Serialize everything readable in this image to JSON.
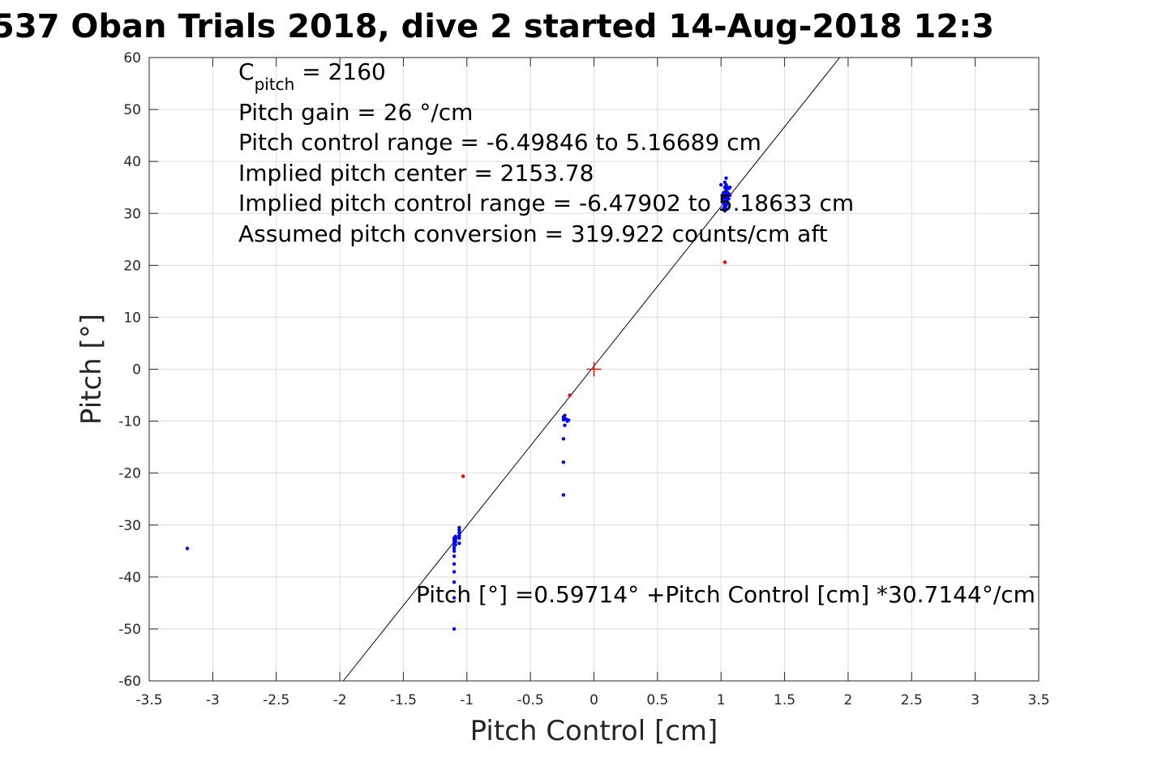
{
  "chart_data": {
    "type": "scatter",
    "title": "537 Oban Trials 2018, dive 2 started 14-Aug-2018 12:3",
    "xlabel": "Pitch Control [cm]",
    "ylabel": "Pitch [°]",
    "xlim": [
      -3.5,
      3.5
    ],
    "ylim": [
      -60,
      60
    ],
    "xticks": [
      -3.5,
      -3,
      -2.5,
      -2,
      -1.5,
      -1,
      -0.5,
      0,
      0.5,
      1,
      1.5,
      2,
      2.5,
      3,
      3.5
    ],
    "xtick_labels": [
      "-3.5",
      "-3",
      "-2.5",
      "-2",
      "-1.5",
      "-1",
      "-0.5",
      "0",
      "0.5",
      "1",
      "1.5",
      "2",
      "2.5",
      "3",
      "3.5"
    ],
    "yticks": [
      60,
      50,
      40,
      30,
      20,
      10,
      0,
      -10,
      -20,
      -30,
      -40,
      -50,
      -60
    ],
    "ytick_labels": [
      "60",
      "50",
      "40",
      "30",
      "20",
      "10",
      "0",
      "-10",
      "-20",
      "-30",
      "-40",
      "-50",
      "-60"
    ],
    "grid": true,
    "series": [
      {
        "color": "#0000ff",
        "points": [
          [
            -3.2,
            -34.5
          ],
          [
            -1.1,
            -50.0
          ],
          [
            -1.1,
            -44.0
          ],
          [
            -1.1,
            -41.0
          ],
          [
            -1.1,
            -39.0
          ],
          [
            -1.1,
            -37.5
          ],
          [
            -1.1,
            -36.0
          ],
          [
            -1.1,
            -35.0
          ],
          [
            -1.1,
            -34.5
          ],
          [
            -1.1,
            -34.0
          ],
          [
            -1.1,
            -33.5
          ],
          [
            -1.1,
            -33.0
          ],
          [
            -1.1,
            -32.5
          ],
          [
            -1.09,
            -33.8
          ],
          [
            -1.09,
            -33.2
          ],
          [
            -1.09,
            -32.8
          ],
          [
            -1.09,
            -32.2
          ],
          [
            -1.06,
            -33.5
          ],
          [
            -1.06,
            -32.5
          ],
          [
            -1.06,
            -32.0
          ],
          [
            -1.06,
            -31.5
          ],
          [
            -1.06,
            -31.0
          ],
          [
            -1.06,
            -30.5
          ],
          [
            -0.24,
            -24.2
          ],
          [
            -0.24,
            -17.9
          ],
          [
            -0.24,
            -13.4
          ],
          [
            -0.23,
            -10.8
          ],
          [
            -0.24,
            -9.7
          ],
          [
            -0.24,
            -9.2
          ],
          [
            -0.23,
            -8.9
          ],
          [
            -0.22,
            -9.6
          ],
          [
            -0.21,
            -10.0
          ],
          [
            -0.2,
            -9.8
          ],
          [
            1.0,
            35.5
          ],
          [
            1.01,
            33.5
          ],
          [
            1.01,
            32.8
          ],
          [
            1.01,
            32.2
          ],
          [
            1.02,
            34.0
          ],
          [
            1.02,
            33.0
          ],
          [
            1.02,
            32.0
          ],
          [
            1.02,
            31.0
          ],
          [
            1.03,
            36.0
          ],
          [
            1.03,
            35.0
          ],
          [
            1.03,
            34.0
          ],
          [
            1.03,
            33.0
          ],
          [
            1.03,
            32.0
          ],
          [
            1.03,
            31.5
          ],
          [
            1.03,
            30.5
          ],
          [
            1.04,
            36.8
          ],
          [
            1.04,
            35.5
          ],
          [
            1.04,
            34.5
          ],
          [
            1.04,
            33.5
          ],
          [
            1.04,
            32.5
          ],
          [
            1.04,
            31.5
          ],
          [
            1.04,
            30.8
          ],
          [
            1.05,
            35.0
          ],
          [
            1.05,
            34.0
          ],
          [
            1.05,
            33.0
          ],
          [
            1.05,
            32.0
          ],
          [
            1.06,
            34.8
          ],
          [
            1.06,
            33.8
          ],
          [
            1.06,
            32.8
          ],
          [
            1.07,
            35.0
          ],
          [
            1.07,
            33.5
          ]
        ]
      },
      {
        "color": "#ff0000",
        "points": [
          [
            -1.03,
            -20.6
          ],
          [
            -0.19,
            -5.0
          ],
          [
            1.03,
            20.6
          ]
        ]
      }
    ],
    "fit_line": {
      "intercept": 0.59714,
      "slope": 30.7144,
      "color": "#000000"
    },
    "center_marker": {
      "x": 0,
      "y": 0,
      "color": "#ff0000",
      "shape": "plus"
    },
    "annotations": [
      {
        "parts": [
          {
            "text": "C",
            "style": "normal"
          },
          {
            "text": "pitch",
            "style": "subscript"
          },
          {
            "text": " = 2160",
            "style": "normal"
          }
        ]
      },
      {
        "text": "Pitch gain = 26 °/cm"
      },
      {
        "text": "Pitch control range = -6.49846 to 5.16689 cm"
      },
      {
        "text": "Implied pitch center = 2153.78"
      },
      {
        "text": "Implied pitch control range = -6.47902 to 5.18633 cm"
      },
      {
        "text": "Assumed pitch conversion = 319.922 counts/cm aft"
      }
    ],
    "equation": "Pitch [°] =0.59714° +Pitch Control [cm] *30.7144°/cm"
  }
}
